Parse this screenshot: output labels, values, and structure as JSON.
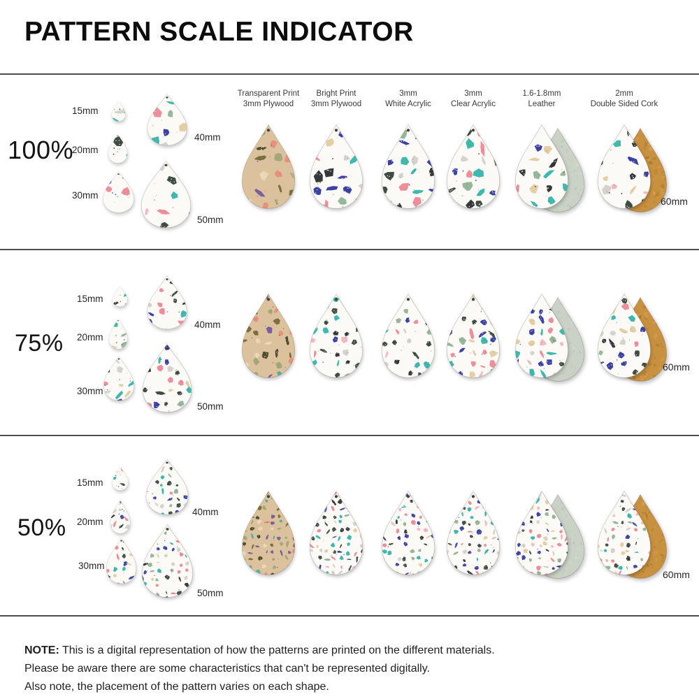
{
  "title": "PATTERN SCALE INDICATOR",
  "material_columns": [
    {
      "key": "transparent-print-plywood",
      "line1": "Transparent Print",
      "line2": "3mm Plywood",
      "variant": "plywood"
    },
    {
      "key": "bright-print-plywood",
      "line1": "Bright Print",
      "line2": "3mm Plywood",
      "variant": "bright"
    },
    {
      "key": "white-acrylic",
      "line1": "3mm",
      "line2": "White Acrylic",
      "variant": "bright"
    },
    {
      "key": "clear-acrylic",
      "line1": "3mm",
      "line2": "Clear Acrylic",
      "variant": "bright"
    },
    {
      "key": "leather",
      "line1": "1.6-1.8mm",
      "line2": "Leather",
      "variant": "leather"
    },
    {
      "key": "double-sided-cork",
      "line1": "2mm",
      "line2": "Double Sided Cork",
      "variant": "cork"
    }
  ],
  "rows": [
    {
      "percent": "100%",
      "scale": 1.0,
      "size_labels": [
        "15mm",
        "20mm",
        "30mm",
        "40mm",
        "50mm"
      ],
      "right_size_label": "60mm"
    },
    {
      "percent": "75%",
      "scale": 0.75,
      "size_labels": [
        "15mm",
        "20mm",
        "30mm",
        "40mm",
        "50mm"
      ],
      "right_size_label": "60mm"
    },
    {
      "percent": "50%",
      "scale": 0.5,
      "size_labels": [
        "15mm",
        "20mm",
        "30mm",
        "40mm",
        "50mm"
      ],
      "right_size_label": "60mm"
    }
  ],
  "note": {
    "heading": "NOTE:",
    "lines": [
      "This is a digital representation of how the patterns are printed on the different materials.",
      "Please be aware there are some characteristics that can't be represented digitally.",
      "Also note, the placement of the pattern varies on each shape."
    ]
  },
  "colors": {
    "background": "#ffffff",
    "divider": "#4d4d4d",
    "text": "#1c1c1c",
    "bright_background": "#fbfaf7",
    "bright_chips": [
      "#3fb8ad",
      "#ee8e9b",
      "#3a41a2",
      "#3f4c42",
      "#35383b",
      "#97b79a",
      "#e4cfa5",
      "#d7d3cc",
      "#f1b9c3"
    ],
    "plywood_background": "#dcc19d",
    "plywood_chips": [
      "#7b6f3f",
      "#7b5fa2",
      "#e7907e",
      "#4fb2a1",
      "#a3a87a",
      "#ead9b6",
      "#4f4c32",
      "#b7ab8e"
    ],
    "leather_back": "#c9d2c4",
    "cork_back": "#c8913f",
    "hole": "#44403c"
  }
}
